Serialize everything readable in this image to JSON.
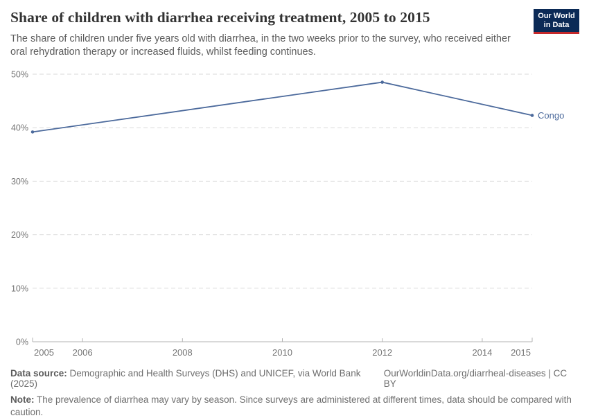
{
  "header": {
    "title": "Share of children with diarrhea receiving treatment, 2005 to 2015",
    "subtitle": "The share of children under five years old with diarrhea, in the two weeks prior to the survey, who received either oral rehydration therapy or increased fluids, whilst feeding continues.",
    "logo": {
      "line1": "Our World",
      "line2": "in Data"
    }
  },
  "chart_data": {
    "type": "line",
    "title": "Share of children with diarrhea receiving treatment, 2005 to 2015",
    "series": [
      {
        "name": "Congo",
        "x": [
          2005,
          2012,
          2015
        ],
        "values": [
          39.2,
          48.5,
          42.3
        ]
      }
    ],
    "xlim": [
      2005,
      2015
    ],
    "ylim": [
      0,
      50
    ],
    "x_ticks": [
      2005,
      2006,
      2008,
      2010,
      2012,
      2014,
      2015
    ],
    "y_ticks": [
      0,
      10,
      20,
      30,
      40,
      50
    ],
    "y_tick_suffix": "%",
    "grid": "dashed horizontal",
    "legend_position": "end-of-line label"
  },
  "footer": {
    "data_source_label": "Data source:",
    "data_source_text": " Demographic and Health Surveys (DHS) and UNICEF, via World Bank (2025)",
    "attribution": "OurWorldinData.org/diarrheal-diseases | CC BY",
    "note_label": "Note:",
    "note_text": " The prevalence of diarrhea may vary by season. Since surveys are administered at different times, data should be compared with caution."
  },
  "colors": {
    "series_line": "#4c6a9c",
    "logo_bg": "#0b2a56",
    "logo_stripe": "#c5292b",
    "grid": "#dadada",
    "axis": "#b3b3b3",
    "tick_label": "#757575",
    "title": "#333333",
    "subtitle": "#5b5b5b",
    "footer_text": "#6e6e6e"
  }
}
